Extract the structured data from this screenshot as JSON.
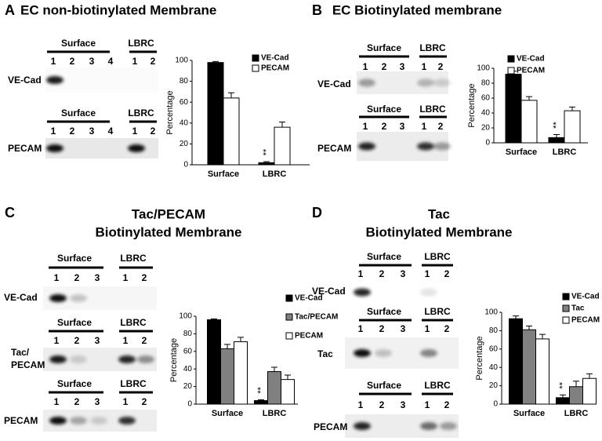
{
  "panels": [
    {
      "label": "A",
      "title": [
        "EC non-biotinylated Membrane"
      ],
      "blots": [
        {
          "groups": [
            {
              "name": "Surface",
              "lanes": [
                1,
                2,
                3,
                4
              ]
            },
            {
              "name": "LBRC",
              "lanes": [
                1,
                2
              ]
            }
          ],
          "row_label": [
            "VE-Cad"
          ]
        },
        {
          "groups": [
            {
              "name": "Surface",
              "lanes": [
                1,
                2,
                3,
                4
              ]
            },
            {
              "name": "LBRC",
              "lanes": [
                1,
                2
              ]
            }
          ],
          "row_label": [
            "PECAM"
          ]
        }
      ]
    },
    {
      "label": "B",
      "title": [
        "EC Biotinylated membrane"
      ],
      "blots": [
        {
          "groups": [
            {
              "name": "Surface",
              "lanes": [
                1,
                2,
                3
              ]
            },
            {
              "name": "LBRC",
              "lanes": [
                1,
                2
              ]
            }
          ],
          "row_label": [
            "VE-Cad"
          ]
        },
        {
          "groups": [
            {
              "name": "Surface",
              "lanes": [
                1,
                2,
                3
              ]
            },
            {
              "name": "LBRC",
              "lanes": [
                1,
                2
              ]
            }
          ],
          "row_label": [
            "PECAM"
          ]
        }
      ]
    },
    {
      "label": "C",
      "title": [
        "Tac/PECAM",
        "Biotinylated Membrane"
      ],
      "blots": [
        {
          "groups": [
            {
              "name": "Surface",
              "lanes": [
                1,
                2,
                3
              ]
            },
            {
              "name": "LBRC",
              "lanes": [
                1,
                2
              ]
            }
          ],
          "row_label": [
            "VE-Cad"
          ]
        },
        {
          "groups": [
            {
              "name": "Surface",
              "lanes": [
                1,
                2,
                3
              ]
            },
            {
              "name": "LBRC",
              "lanes": [
                1,
                2
              ]
            }
          ],
          "row_label": [
            "Tac/",
            "PECAM"
          ]
        },
        {
          "groups": [
            {
              "name": "Surface",
              "lanes": [
                1,
                2,
                3
              ]
            },
            {
              "name": "LBRC",
              "lanes": [
                1,
                2
              ]
            }
          ],
          "row_label": [
            "PECAM"
          ]
        }
      ]
    },
    {
      "label": "D",
      "title": [
        "Tac",
        "Biotinylated Membrane"
      ],
      "blots": [
        {
          "groups": [
            {
              "name": "Surface",
              "lanes": [
                1,
                2,
                3
              ]
            },
            {
              "name": "LBRC",
              "lanes": [
                1,
                2
              ]
            }
          ],
          "row_label": [
            "VE-Cad"
          ]
        },
        {
          "groups": [
            {
              "name": "Surface",
              "lanes": [
                1,
                2,
                3
              ]
            },
            {
              "name": "LBRC",
              "lanes": [
                1,
                2
              ]
            }
          ],
          "row_label": [
            "Tac"
          ]
        },
        {
          "groups": [
            {
              "name": "Surface",
              "lanes": [
                1,
                2,
                3
              ]
            },
            {
              "name": "LBRC",
              "lanes": [
                1,
                2
              ]
            }
          ],
          "row_label": [
            "PECAM"
          ]
        }
      ]
    }
  ],
  "chart_data": [
    {
      "type": "bar",
      "ylabel": "Percentage",
      "categories": [
        "Surface",
        "LBRC"
      ],
      "ylim": [
        0,
        100
      ],
      "yticks": [
        0,
        20,
        40,
        60,
        80,
        100
      ],
      "annotation": "**",
      "series": [
        {
          "name": "VE-Cad",
          "color": "#000000",
          "values": [
            98,
            2
          ],
          "errors": [
            1,
            1
          ]
        },
        {
          "name": "PECAM",
          "color": "#ffffff",
          "values": [
            64,
            36
          ],
          "errors": [
            5,
            5
          ]
        }
      ]
    },
    {
      "type": "bar",
      "ylabel": "Percentage",
      "categories": [
        "Surface",
        "LBRC"
      ],
      "ylim": [
        0,
        100
      ],
      "yticks": [
        0,
        20,
        40,
        60,
        80,
        100
      ],
      "annotation": "**",
      "series": [
        {
          "name": "VE-Cad",
          "color": "#000000",
          "values": [
            92,
            7
          ],
          "errors": [
            4,
            4
          ]
        },
        {
          "name": "PECAM",
          "color": "#ffffff",
          "values": [
            57,
            43
          ],
          "errors": [
            5,
            5
          ]
        }
      ]
    },
    {
      "type": "bar",
      "ylabel": "Percentage",
      "categories": [
        "Surface",
        "LBRC"
      ],
      "ylim": [
        0,
        100
      ],
      "yticks": [
        0,
        20,
        40,
        60,
        80,
        100
      ],
      "annotation": "**",
      "series": [
        {
          "name": "VE-Cad",
          "color": "#000000",
          "values": [
            96,
            4
          ],
          "errors": [
            1,
            1
          ]
        },
        {
          "name": "Tac/PECAM",
          "color": "#808080",
          "values": [
            63,
            37
          ],
          "errors": [
            5,
            5
          ]
        },
        {
          "name": "PECAM",
          "color": "#ffffff",
          "values": [
            71,
            28
          ],
          "errors": [
            5,
            5
          ]
        }
      ]
    },
    {
      "type": "bar",
      "ylabel": "Percentage",
      "categories": [
        "Surface",
        "LBRC"
      ],
      "ylim": [
        0,
        100
      ],
      "yticks": [
        0,
        20,
        40,
        60,
        80,
        100
      ],
      "annotation": "**",
      "series": [
        {
          "name": "VE-Cad",
          "color": "#000000",
          "values": [
            93,
            7
          ],
          "errors": [
            3,
            3
          ]
        },
        {
          "name": "Tac",
          "color": "#808080",
          "values": [
            81,
            19
          ],
          "errors": [
            4,
            6
          ]
        },
        {
          "name": "PECAM",
          "color": "#ffffff",
          "values": [
            71,
            28
          ],
          "errors": [
            5,
            5
          ]
        }
      ]
    }
  ]
}
